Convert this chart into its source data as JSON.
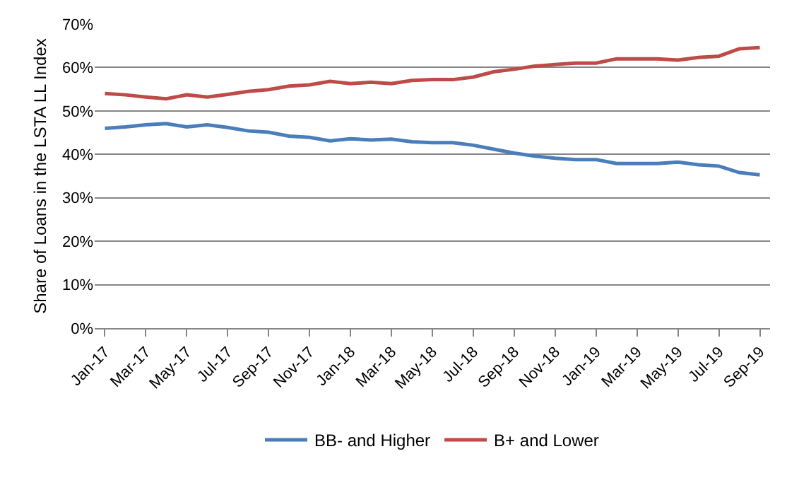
{
  "chart_data": {
    "type": "line",
    "ylabel": "Share of Loans in the LSTA LL Index",
    "categories": [
      "Jan-17",
      null,
      "Mar-17",
      null,
      "May-17",
      null,
      "Jul-17",
      null,
      "Sep-17",
      null,
      "Nov-17",
      null,
      "Jan-18",
      null,
      "Mar-18",
      null,
      "May-18",
      null,
      "Jul-18",
      null,
      "Sep-18",
      null,
      "Nov-18",
      null,
      "Jan-19",
      null,
      "Mar-19",
      null,
      "May-19",
      null,
      "Jul-19",
      null,
      "Sep-19"
    ],
    "series": [
      {
        "name": "BB- and Higher",
        "color": "#4a7ebb",
        "values": [
          46,
          46.3,
          46.8,
          47.1,
          46.3,
          46.8,
          46.2,
          45.4,
          45.1,
          44.2,
          43.9,
          43.1,
          43.6,
          43.3,
          43.5,
          42.9,
          42.7,
          42.7,
          42.1,
          41.2,
          40.3,
          39.6,
          39.1,
          38.8,
          38.8,
          37.9,
          37.9,
          37.9,
          38.2,
          37.6,
          37.3,
          35.8,
          35.3
        ]
      },
      {
        "name": "B+ and Lower",
        "color": "#be4b48",
        "values": [
          54,
          53.7,
          53.2,
          52.8,
          53.7,
          53.2,
          53.8,
          54.5,
          54.9,
          55.7,
          56,
          56.8,
          56.3,
          56.6,
          56.3,
          57,
          57.2,
          57.2,
          57.8,
          59,
          59.6,
          60.3,
          60.7,
          61,
          61,
          62,
          62,
          62,
          61.7,
          62.3,
          62.6,
          64.3,
          64.6
        ]
      }
    ],
    "ylim": [
      0,
      70
    ],
    "yticks": [
      {
        "value": 0,
        "label": "0%"
      },
      {
        "value": 10,
        "label": "10%"
      },
      {
        "value": 20,
        "label": "20%"
      },
      {
        "value": 30,
        "label": "30%"
      },
      {
        "value": 40,
        "label": "40%"
      },
      {
        "value": 50,
        "label": "50%"
      },
      {
        "value": 60,
        "label": "60%"
      },
      {
        "value": 70,
        "label": "70%"
      }
    ],
    "grid": "y",
    "legend": "bottom",
    "marker": "none",
    "line_style": "solid"
  }
}
